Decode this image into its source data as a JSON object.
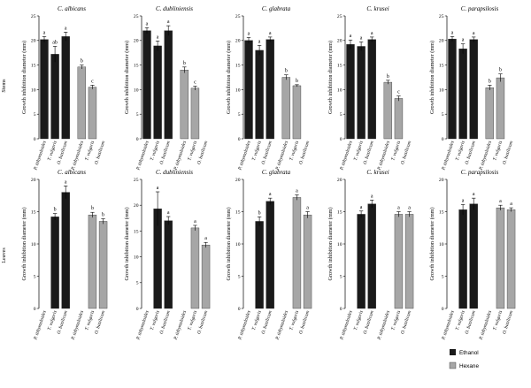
{
  "rows": [
    {
      "label": "Stems"
    },
    {
      "label": "Leaves"
    }
  ],
  "legend": {
    "items": [
      {
        "label": "Ethanol",
        "color": "#1a1a1a"
      },
      {
        "label": "Hexane",
        "color": "#a6a6a6"
      }
    ]
  },
  "chart_data": [
    {
      "type": "bar",
      "title": "C. albicans",
      "ylabel": "Growth inhibition diameter (mm)",
      "ylim": [
        0,
        25
      ],
      "yticks": [
        0,
        5,
        10,
        15,
        20,
        25
      ],
      "categories": [
        "P. tithymaloides",
        "T. vulgaris",
        "O. basilicum",
        "P. tithymaloides",
        "T. vulgaris",
        "O. basilicum"
      ],
      "series": [
        {
          "name": "Ethanol",
          "values": [
            20.2,
            17.2,
            20.8,
            null,
            null,
            null
          ],
          "errors": [
            0.6,
            1.6,
            0.9,
            null,
            null,
            null
          ],
          "labels": [
            "a",
            "ab",
            "a",
            "",
            "",
            ""
          ]
        },
        {
          "name": "Hexane",
          "values": [
            null,
            null,
            null,
            14.6,
            10.5,
            null
          ],
          "errors": [
            null,
            null,
            null,
            0.4,
            0.4,
            null
          ],
          "labels": [
            "",
            "",
            "",
            "b",
            "c",
            ""
          ]
        }
      ]
    },
    {
      "type": "bar",
      "title": "C. dubliniensis",
      "ylabel": "Growth inhibition diameter (mm)",
      "ylim": [
        0,
        25
      ],
      "yticks": [
        0,
        5,
        10,
        15,
        20,
        25
      ],
      "categories": [
        "P. tithymaloides",
        "T. vulgaris",
        "O. basilicum",
        "P. tithymaloides",
        "T. vulgaris",
        "O. basilicum"
      ],
      "series": [
        {
          "name": "Ethanol",
          "values": [
            22.0,
            18.9,
            22.0,
            null,
            null,
            null
          ],
          "errors": [
            0.6,
            1.0,
            1.0,
            null,
            null,
            null
          ],
          "labels": [
            "a",
            "a",
            "a",
            "",
            "",
            ""
          ]
        },
        {
          "name": "Hexane",
          "values": [
            null,
            null,
            null,
            14.0,
            10.3,
            null
          ],
          "errors": [
            null,
            null,
            null,
            0.6,
            0.4,
            null
          ],
          "labels": [
            "",
            "",
            "",
            "b",
            "c",
            ""
          ]
        }
      ]
    },
    {
      "type": "bar",
      "title": "C. glabrata",
      "ylabel": "Growth inhibition diameter (mm)",
      "ylim": [
        0,
        25
      ],
      "yticks": [
        0,
        5,
        10,
        15,
        20,
        25
      ],
      "categories": [
        "P. tithymaloides",
        "T. vulgaris",
        "O. basilicum",
        "P. tithymaloides",
        "T. vulgaris",
        "O. basilicum"
      ],
      "series": [
        {
          "name": "Ethanol",
          "values": [
            20.0,
            18.0,
            20.2,
            null,
            null,
            null
          ],
          "errors": [
            0.6,
            1.0,
            0.5,
            null,
            null,
            null
          ],
          "labels": [
            "a",
            "a",
            "a",
            "",
            "",
            ""
          ]
        },
        {
          "name": "Hexane",
          "values": [
            null,
            null,
            null,
            12.5,
            10.8,
            null
          ],
          "errors": [
            null,
            null,
            null,
            0.5,
            0.2,
            null
          ],
          "labels": [
            "",
            "",
            "",
            "b",
            "b",
            ""
          ]
        }
      ]
    },
    {
      "type": "bar",
      "title": "C. krusei",
      "ylabel": "Growth inhibition diameter (mm)",
      "ylim": [
        0,
        25
      ],
      "yticks": [
        0,
        5,
        10,
        15,
        20,
        25
      ],
      "categories": [
        "P. tithymaloides",
        "T. vulgaris",
        "O. basilicum",
        "P. tithymaloides",
        "T. vulgaris",
        "O. basilicum"
      ],
      "series": [
        {
          "name": "Ethanol",
          "values": [
            19.2,
            18.8,
            20.2,
            null,
            null,
            null
          ],
          "errors": [
            0.9,
            0.9,
            0.5,
            null,
            null,
            null
          ],
          "labels": [
            "a",
            "a",
            "a",
            "",
            "",
            ""
          ]
        },
        {
          "name": "Hexane",
          "values": [
            null,
            null,
            null,
            11.5,
            8.2,
            null
          ],
          "errors": [
            null,
            null,
            null,
            0.4,
            0.5,
            null
          ],
          "labels": [
            "",
            "",
            "",
            "b",
            "c",
            ""
          ]
        }
      ]
    },
    {
      "type": "bar",
      "title": "C. parapsilosis",
      "ylabel": "Growth inhibition diameter (mm)",
      "ylim": [
        0,
        25
      ],
      "yticks": [
        0,
        5,
        10,
        15,
        20,
        25
      ],
      "categories": [
        "P. tithymaloides",
        "T. vulgaris",
        "O. basilicum",
        "P. tithymaloides",
        "T. vulgaris",
        "O. basilicum"
      ],
      "series": [
        {
          "name": "Ethanol",
          "values": [
            20.3,
            18.3,
            20.2,
            null,
            null,
            null
          ],
          "errors": [
            0.5,
            1.0,
            0.5,
            null,
            null,
            null
          ],
          "labels": [
            "a",
            "a",
            "a",
            "",
            "",
            ""
          ]
        },
        {
          "name": "Hexane",
          "values": [
            null,
            null,
            null,
            10.4,
            12.4,
            null
          ],
          "errors": [
            null,
            null,
            null,
            0.5,
            0.8,
            null
          ],
          "labels": [
            "",
            "",
            "",
            "b",
            "b",
            ""
          ]
        }
      ]
    },
    {
      "type": "bar",
      "title": "C. albicans",
      "ylabel": "Growth inhibition diameter (mm)",
      "ylim": [
        0,
        20
      ],
      "yticks": [
        0,
        5,
        10,
        15,
        20
      ],
      "categories": [
        "P. tithymaloides",
        "T. vulgaris",
        "O. basilicum",
        "P. tithymaloides",
        "T. vulgaris",
        "O. basilicum"
      ],
      "series": [
        {
          "name": "Ethanol",
          "values": [
            null,
            14.2,
            18.0,
            null,
            null,
            null
          ],
          "errors": [
            null,
            0.5,
            1.0,
            null,
            null,
            null
          ],
          "labels": [
            "",
            "b",
            "a",
            "",
            "",
            ""
          ]
        },
        {
          "name": "Hexane",
          "values": [
            null,
            null,
            null,
            null,
            14.5,
            13.5
          ],
          "errors": [
            null,
            null,
            null,
            null,
            0.4,
            0.4
          ],
          "labels": [
            "",
            "",
            "",
            "",
            "b",
            "b"
          ]
        }
      ]
    },
    {
      "type": "bar",
      "title": "C. dubliniensis",
      "ylabel": "Growth inhibition diameter (mm)",
      "ylim": [
        0,
        25
      ],
      "yticks": [
        0,
        5,
        10,
        15,
        20,
        25
      ],
      "categories": [
        "P. tithymaloides",
        "T. vulgaris",
        "O. basilicum",
        "P. tithymaloides",
        "T. vulgaris",
        "O. basilicum"
      ],
      "series": [
        {
          "name": "Ethanol",
          "values": [
            null,
            19.3,
            17.0,
            null,
            null,
            null
          ],
          "errors": [
            null,
            3.3,
            0.8,
            null,
            null,
            null
          ],
          "labels": [
            "",
            "a",
            "a",
            "",
            "",
            ""
          ]
        },
        {
          "name": "Hexane",
          "values": [
            null,
            null,
            null,
            null,
            15.6,
            12.3
          ],
          "errors": [
            null,
            null,
            null,
            null,
            0.5,
            0.5
          ],
          "labels": [
            "",
            "",
            "",
            "",
            "a",
            "a"
          ]
        }
      ]
    },
    {
      "type": "bar",
      "title": "C. glabrata",
      "ylabel": "Growth inhibition diameter (mm)",
      "ylim": [
        0,
        20
      ],
      "yticks": [
        0,
        5,
        10,
        15,
        20
      ],
      "categories": [
        "P. tithymaloides",
        "T. vulgaris",
        "O. basilicum",
        "P. tithymaloides",
        "T. vulgaris",
        "O. basilicum"
      ],
      "series": [
        {
          "name": "Ethanol",
          "values": [
            null,
            13.5,
            16.6,
            null,
            null,
            null
          ],
          "errors": [
            null,
            0.7,
            0.5,
            null,
            null,
            null
          ],
          "labels": [
            "",
            "b",
            "a",
            "",
            "",
            ""
          ]
        },
        {
          "name": "Hexane",
          "values": [
            null,
            null,
            null,
            null,
            17.2,
            14.5
          ],
          "errors": [
            null,
            null,
            null,
            null,
            0.4,
            0.5
          ],
          "labels": [
            "",
            "",
            "",
            "",
            "a",
            "a"
          ]
        }
      ]
    },
    {
      "type": "bar",
      "title": "C. krusei",
      "ylabel": "Growth inhibition diameter (mm)",
      "ylim": [
        0,
        20
      ],
      "yticks": [
        0,
        5,
        10,
        15,
        20
      ],
      "categories": [
        "P. tithymaloides",
        "T. vulgaris",
        "O. basilicum",
        "P. tithymaloides",
        "T. vulgaris",
        "O. basilicum"
      ],
      "series": [
        {
          "name": "Ethanol",
          "values": [
            null,
            14.6,
            16.2,
            null,
            null,
            null
          ],
          "errors": [
            null,
            0.5,
            0.6,
            null,
            null,
            null
          ],
          "labels": [
            "",
            "a",
            "a",
            "",
            "",
            ""
          ]
        },
        {
          "name": "Hexane",
          "values": [
            null,
            null,
            null,
            null,
            14.6,
            14.6
          ],
          "errors": [
            null,
            null,
            null,
            null,
            0.4,
            0.4
          ],
          "labels": [
            "",
            "",
            "",
            "",
            "a",
            "a"
          ]
        }
      ]
    },
    {
      "type": "bar",
      "title": "C. parapsilosis",
      "ylabel": "Growth inhibition diameter (mm)",
      "ylim": [
        0,
        20
      ],
      "yticks": [
        0,
        5,
        10,
        15,
        20
      ],
      "categories": [
        "P. tithymaloides",
        "T. vulgaris",
        "O. basilicum",
        "P. tithymaloides",
        "T. vulgaris",
        "O. basilicum"
      ],
      "series": [
        {
          "name": "Ethanol",
          "values": [
            null,
            15.3,
            16.2,
            null,
            null,
            null
          ],
          "errors": [
            null,
            0.8,
            0.9,
            null,
            null,
            null
          ],
          "labels": [
            "",
            "a",
            "a",
            "",
            "",
            ""
          ]
        },
        {
          "name": "Hexane",
          "values": [
            null,
            null,
            null,
            null,
            15.6,
            15.3
          ],
          "errors": [
            null,
            null,
            null,
            null,
            0.4,
            0.3
          ],
          "labels": [
            "",
            "",
            "",
            "",
            "a",
            "a"
          ]
        }
      ]
    }
  ]
}
